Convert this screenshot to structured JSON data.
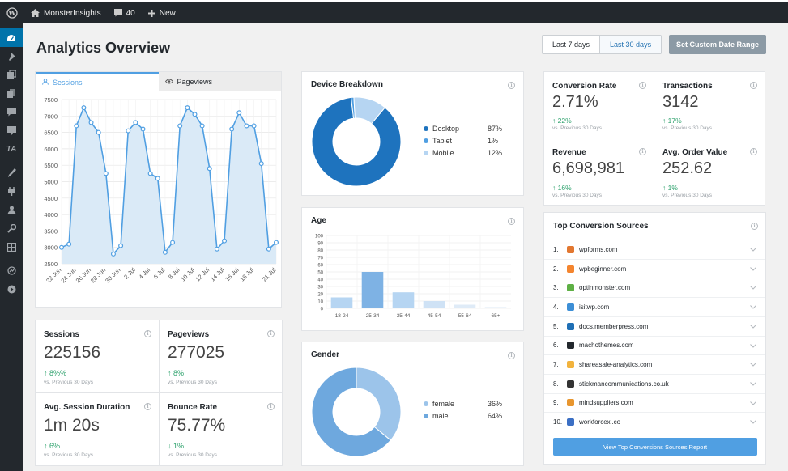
{
  "admin_bar": {
    "site_name": "MonsterInsights",
    "comments_count": "40",
    "new_label": "New"
  },
  "sidebar": {
    "ta_label": "TA"
  },
  "page": {
    "title": "Analytics Overview"
  },
  "date_range": {
    "options": [
      "Last 7 days",
      "Last 30 days"
    ],
    "selected": "Last 30 days",
    "custom_label": "Set Custom Date Range"
  },
  "tabs": {
    "sessions_label": "Sessions",
    "pageviews_label": "Pageviews"
  },
  "chart_data": {
    "type": "area",
    "x": [
      "22 Jun",
      "23 Jun",
      "24 Jun",
      "25 Jun",
      "26 Jun",
      "27 Jun",
      "28 Jun",
      "29 Jun",
      "30 Jun",
      "1 Jul",
      "2 Jul",
      "3 Jul",
      "4 Jul",
      "5 Jul",
      "6 Jul",
      "7 Jul",
      "8 Jul",
      "9 Jul",
      "10 Jul",
      "11 Jul",
      "12 Jul",
      "13 Jul",
      "14 Jul",
      "15 Jul",
      "16 Jul",
      "17 Jul",
      "18 Jul",
      "19 Jul",
      "20 Jul",
      "21 Jul"
    ],
    "tick_labels": [
      "22 Jun",
      "24 Jun",
      "26 Jun",
      "28 Jun",
      "30 Jun",
      "2 Jul",
      "4 Jul",
      "6 Jul",
      "8 Jul",
      "10 Jul",
      "12 Jul",
      "14 Jul",
      "16 Jul",
      "18 Jul",
      "21 Jul"
    ],
    "values": [
      3000,
      3100,
      6700,
      7250,
      6800,
      6500,
      5250,
      2800,
      3050,
      6550,
      6800,
      6600,
      5250,
      5100,
      2850,
      3150,
      6700,
      7250,
      7050,
      6700,
      5400,
      2950,
      3200,
      6600,
      7100,
      6700,
      6700,
      5550,
      2950,
      3150
    ],
    "y_ticks": [
      2500,
      3000,
      3500,
      4000,
      4500,
      5000,
      5500,
      6000,
      6500,
      7000,
      7500
    ],
    "ylim": [
      2500,
      7500
    ],
    "color": "#509fe2",
    "fill": "#daeaf7"
  },
  "metrics": [
    {
      "title": "Sessions",
      "value": "225156",
      "change": "8%%",
      "direction": "up",
      "sub": "vs. Previous 30 Days"
    },
    {
      "title": "Pageviews",
      "value": "277025",
      "change": "8%",
      "direction": "up",
      "sub": "vs. Previous 30 Days"
    },
    {
      "title": "Avg. Session Duration",
      "value": "1m 20s",
      "change": "6%",
      "direction": "up",
      "sub": "vs. Previous 30 Days"
    },
    {
      "title": "Bounce Rate",
      "value": "75.77%",
      "change": "1%",
      "direction": "down",
      "sub": "vs. Previous 30 Days"
    }
  ],
  "device": {
    "title": "Device Breakdown",
    "items": [
      {
        "label": "Desktop",
        "pct": "87%",
        "value": 87,
        "color": "#1e73be"
      },
      {
        "label": "Tablet",
        "pct": "1%",
        "value": 1,
        "color": "#509fe2"
      },
      {
        "label": "Mobile",
        "pct": "12%",
        "value": 12,
        "color": "#b6d5f2"
      }
    ]
  },
  "age": {
    "title": "Age",
    "categories": [
      "18-24",
      "25-34",
      "35-44",
      "45-54",
      "55-64",
      "65+"
    ],
    "values": [
      15,
      50,
      22,
      10,
      5,
      2
    ],
    "colors": [
      "#b6d5f2",
      "#7eb2e4",
      "#b6d5f2",
      "#cfe2f5",
      "#dfebf7",
      "#e9f1f9"
    ],
    "y_ticks": [
      0,
      10,
      20,
      30,
      40,
      50,
      60,
      70,
      80,
      90,
      100
    ],
    "ylim": [
      0,
      100
    ]
  },
  "gender": {
    "title": "Gender",
    "items": [
      {
        "label": "female",
        "pct": "36%",
        "value": 36,
        "color": "#9cc4ea"
      },
      {
        "label": "male",
        "pct": "64%",
        "value": 64,
        "color": "#6ea8de"
      }
    ]
  },
  "ecommerce": [
    {
      "title": "Conversion Rate",
      "value": "2.71%",
      "change": "22%",
      "sub": "vs. Previous 30 Days"
    },
    {
      "title": "Transactions",
      "value": "3142",
      "change": "17%",
      "sub": "vs. Previous 30 Days"
    },
    {
      "title": "Revenue",
      "value": "6,698,981",
      "change": "16%",
      "sub": "vs. Previous 30 Days"
    },
    {
      "title": "Avg. Order Value",
      "value": "252.62",
      "change": "1%",
      "sub": "vs. Previous 30 Days"
    }
  ],
  "sources": {
    "title": "Top Conversion Sources",
    "items": [
      {
        "num": "1.",
        "domain": "wpforms.com",
        "color": "#e27730"
      },
      {
        "num": "2.",
        "domain": "wpbeginner.com",
        "color": "#f4852f"
      },
      {
        "num": "3.",
        "domain": "optinmonster.com",
        "color": "#5eb045"
      },
      {
        "num": "4.",
        "domain": "isitwp.com",
        "color": "#3d8fd6"
      },
      {
        "num": "5.",
        "domain": "docs.memberpress.com",
        "color": "#1f6fb5"
      },
      {
        "num": "6.",
        "domain": "machothemes.com",
        "color": "#23282d"
      },
      {
        "num": "7.",
        "domain": "shareasale-analytics.com",
        "color": "#f2b33d"
      },
      {
        "num": "8.",
        "domain": "stickmancommunications.co.uk",
        "color": "#333333"
      },
      {
        "num": "9.",
        "domain": "mindsuppliers.com",
        "color": "#e8962f"
      },
      {
        "num": "10.",
        "domain": "workforcexl.co",
        "color": "#3b6fc4"
      }
    ],
    "button_label": "View Top Conversions Sources Report"
  }
}
